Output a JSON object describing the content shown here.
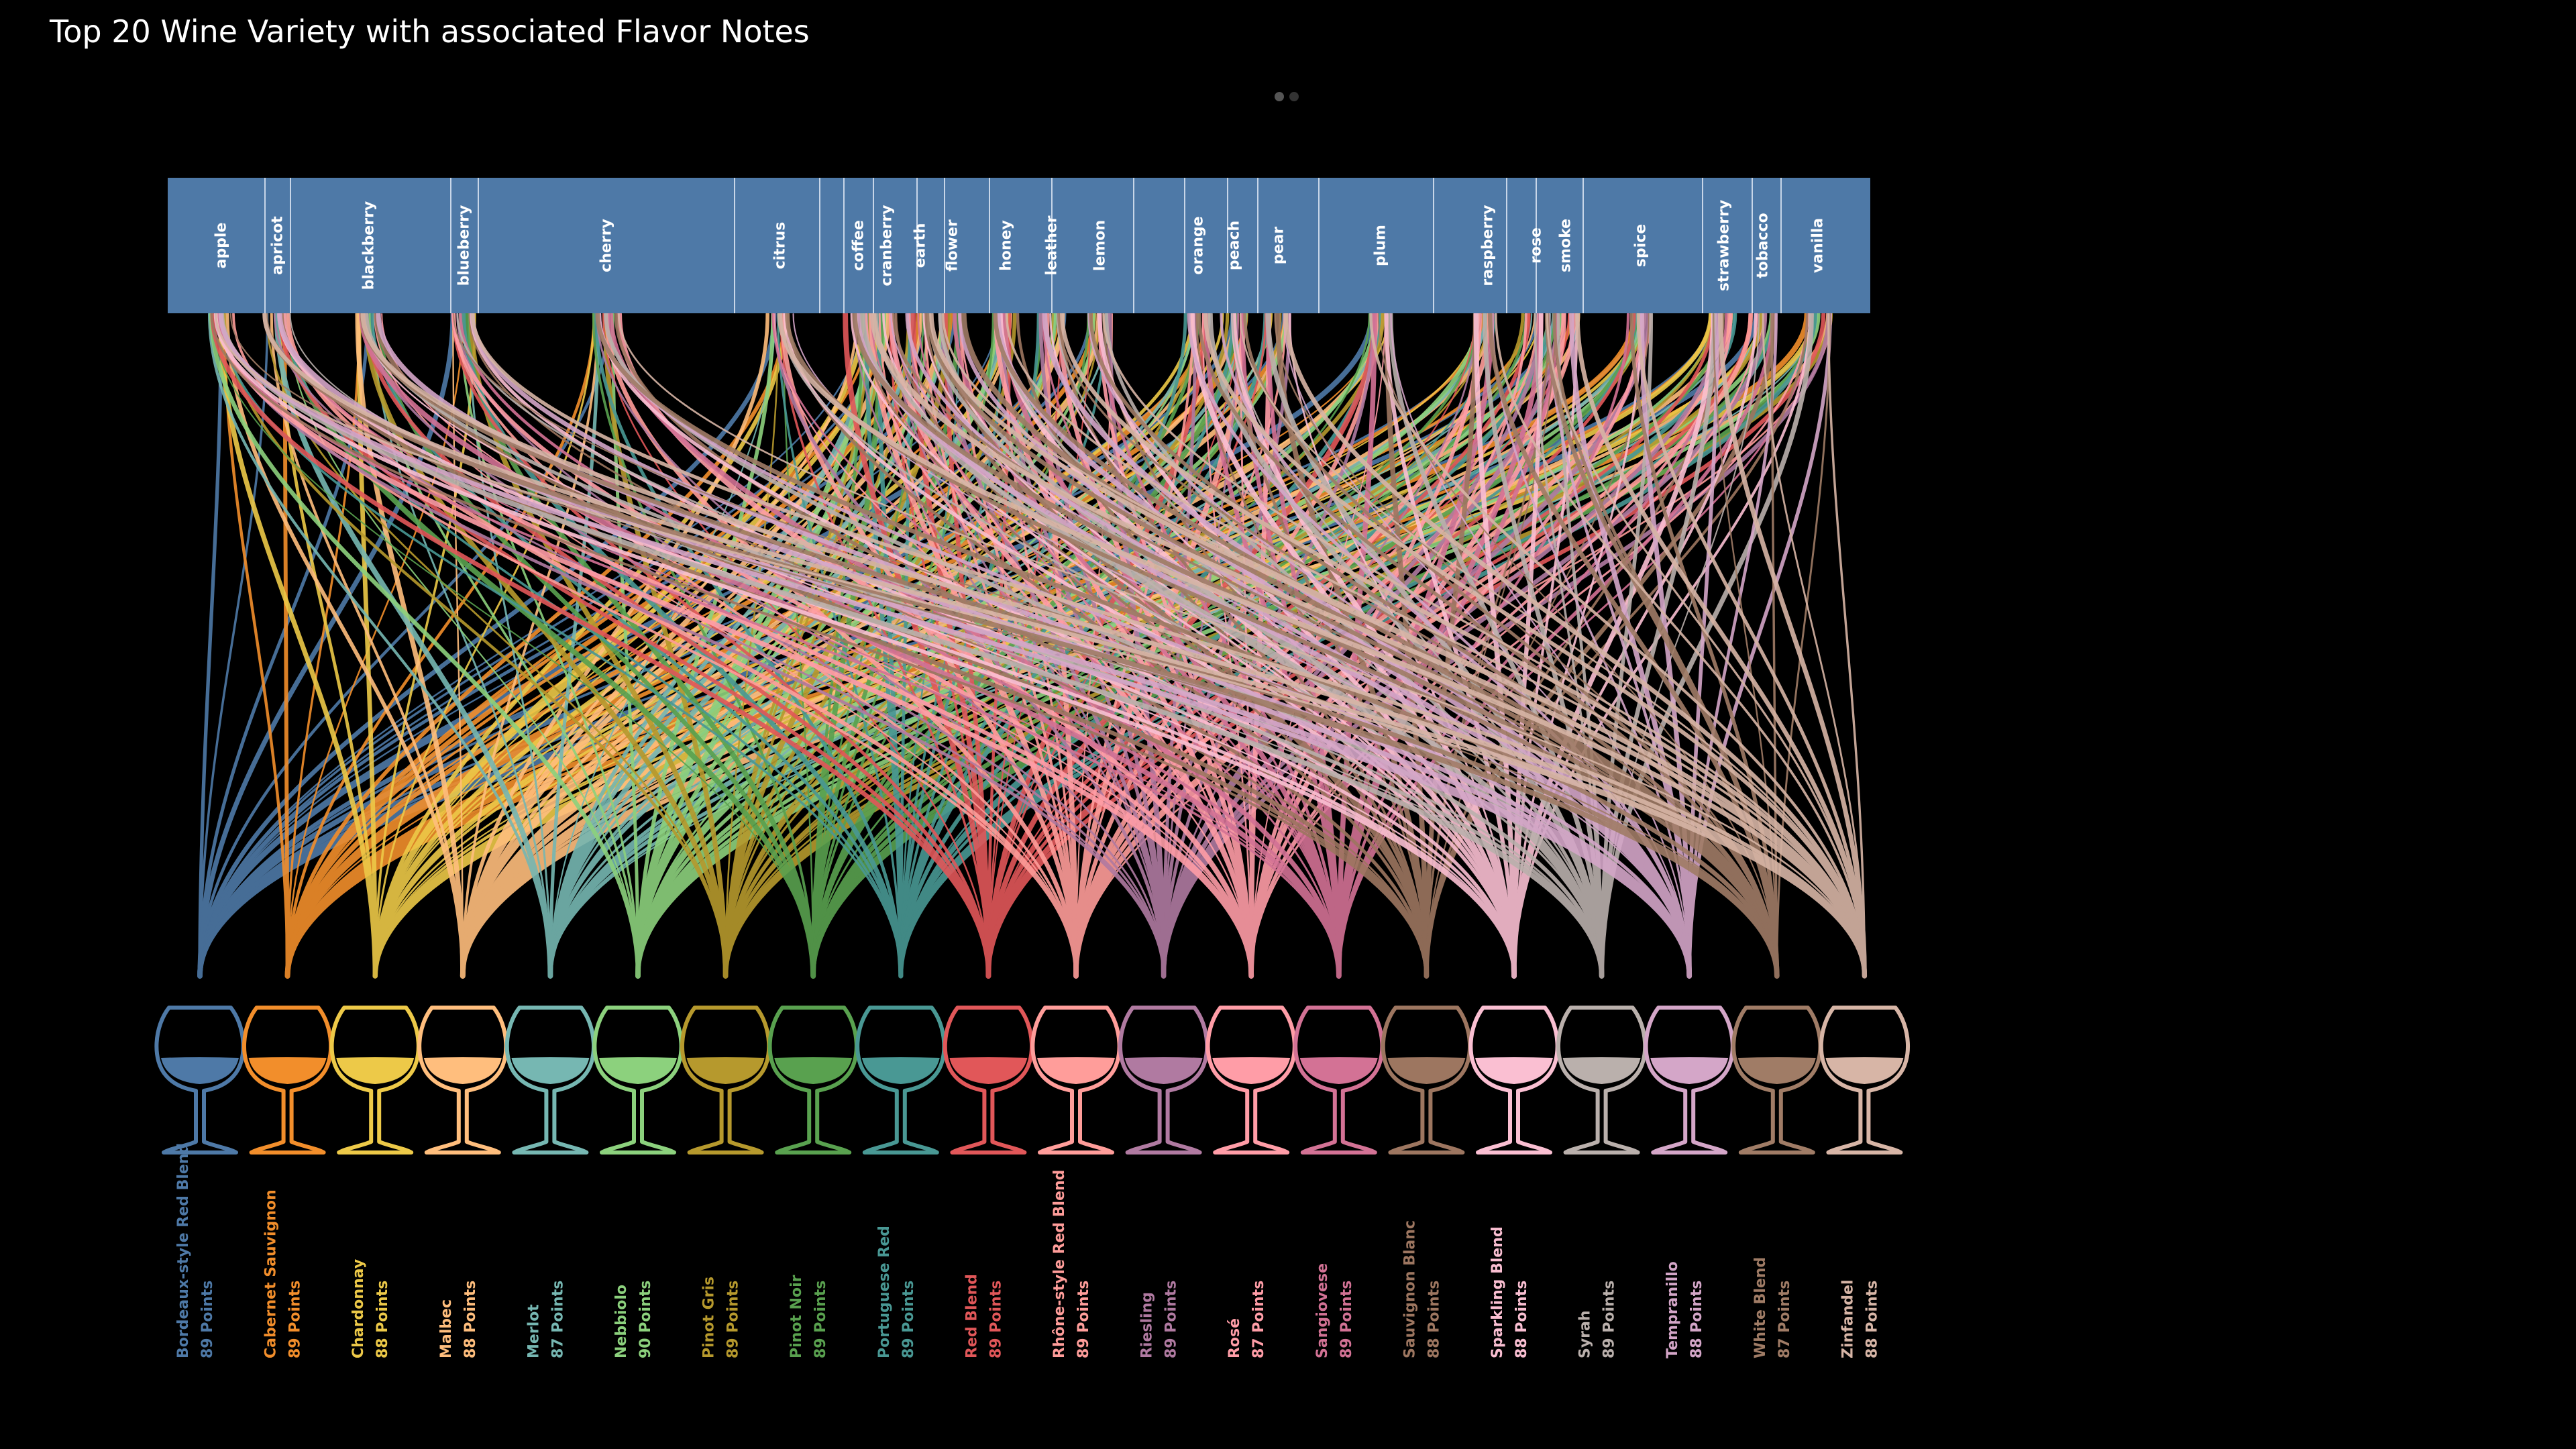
{
  "title": "Top 20 Wine Variety with associated Flavor Notes",
  "colors": {
    "background": "#000000",
    "notes_bar": "#4e79a7",
    "note_divider": "#c8d6e8",
    "pager_active": "#555555",
    "pager_inactive": "#333333"
  },
  "chart_data": {
    "type": "flow",
    "flavor_notes": [
      "apple",
      "apricot",
      "blackberry",
      "blueberry",
      "cherry",
      "citrus",
      "coffee",
      "cranberry",
      "earth",
      "flower",
      "honey",
      "leather",
      "lemon",
      "orange",
      "peach",
      "pear",
      "plum",
      "raspberry",
      "rose",
      "smoke",
      "spice",
      "strawberry",
      "tobacco",
      "vanilla"
    ],
    "varieties": [
      {
        "name": "Bordeaux-style Red Blend",
        "points_label": "89 Points",
        "points": 89,
        "color": "#4e79a7"
      },
      {
        "name": "Cabernet Sauvignon",
        "points_label": "89 Points",
        "points": 89,
        "color": "#f28e2b"
      },
      {
        "name": "Chardonnay",
        "points_label": "88 Points",
        "points": 88,
        "color": "#edc948"
      },
      {
        "name": "Malbec",
        "points_label": "88 Points",
        "points": 88,
        "color": "#ffbe7d"
      },
      {
        "name": "Merlot",
        "points_label": "87 Points",
        "points": 87,
        "color": "#76b7b2"
      },
      {
        "name": "Nebbiolo",
        "points_label": "90 Points",
        "points": 90,
        "color": "#8cd17d"
      },
      {
        "name": "Pinot Gris",
        "points_label": "89 Points",
        "points": 89,
        "color": "#b6992d"
      },
      {
        "name": "Pinot Noir",
        "points_label": "89 Points",
        "points": 89,
        "color": "#59a14f"
      },
      {
        "name": "Portuguese Red",
        "points_label": "89 Points",
        "points": 89,
        "color": "#499894"
      },
      {
        "name": "Red Blend",
        "points_label": "89 Points",
        "points": 89,
        "color": "#e15759"
      },
      {
        "name": "Rhône-style Red Blend",
        "points_label": "89 Points",
        "points": 89,
        "color": "#ff9d9a"
      },
      {
        "name": "Riesling",
        "points_label": "89 Points",
        "points": 89,
        "color": "#b07aa1"
      },
      {
        "name": "Rosé",
        "points_label": "87 Points",
        "points": 87,
        "color": "#ff9da7"
      },
      {
        "name": "Sangiovese",
        "points_label": "89 Points",
        "points": 89,
        "color": "#d37295"
      },
      {
        "name": "Sauvignon Blanc",
        "points_label": "88 Points",
        "points": 88,
        "color": "#9d7660"
      },
      {
        "name": "Sparkling Blend",
        "points_label": "88 Points",
        "points": 88,
        "color": "#fabfd2"
      },
      {
        "name": "Syrah",
        "points_label": "89 Points",
        "points": 89,
        "color": "#bab0ac"
      },
      {
        "name": "Tempranillo",
        "points_label": "88 Points",
        "points": 88,
        "color": "#d4a6c8"
      },
      {
        "name": "White Blend",
        "points_label": "87 Points",
        "points": 87,
        "color": "#a07c66"
      },
      {
        "name": "Zinfandel",
        "points_label": "88 Points",
        "points": 88,
        "color": "#d7b5a6"
      }
    ]
  }
}
